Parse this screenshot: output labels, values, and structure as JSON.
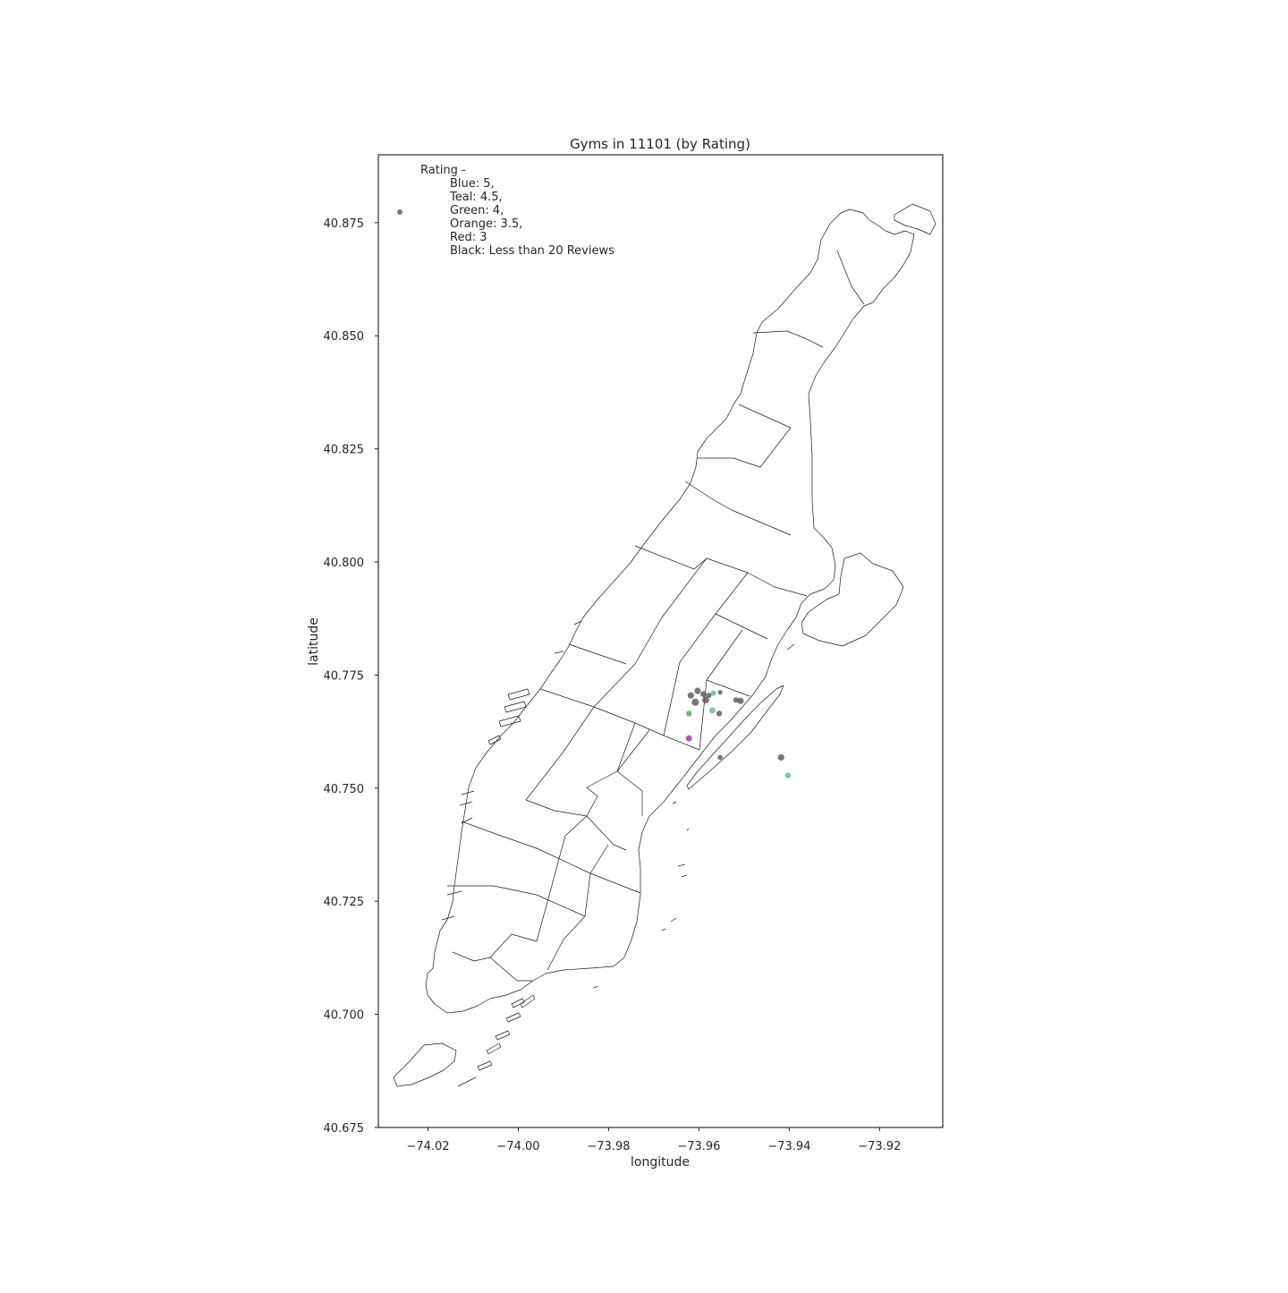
{
  "chart_data": {
    "type": "scatter",
    "title": "Gyms in 11101 (by Rating)",
    "xlabel": "longitude",
    "ylabel": "latitude",
    "xlim": [
      -74.031,
      -73.906
    ],
    "ylim": [
      40.675,
      40.89
    ],
    "x_ticks": [
      -74.02,
      -74.0,
      -73.98,
      -73.96,
      -73.94,
      -73.92
    ],
    "x_tick_labels": [
      "−74.02",
      "−74.00",
      "−73.98",
      "−73.96",
      "−73.94",
      "−73.92"
    ],
    "y_ticks": [
      40.675,
      40.7,
      40.725,
      40.75,
      40.775,
      40.8,
      40.825,
      40.85,
      40.875
    ],
    "y_tick_labels": [
      "40.675",
      "40.700",
      "40.725",
      "40.750",
      "40.775",
      "40.800",
      "40.825",
      "40.850",
      "40.875"
    ],
    "grid": false,
    "legend": {
      "placement": "top-left",
      "header": "Rating -",
      "lines": [
        "Blue: 5,",
        "Teal: 4.5,",
        "Green: 4,",
        "Orange: 3.5,",
        "Red: 3",
        "Black: Less than 20 Reviews"
      ],
      "marker_color": "#777777"
    },
    "colors": {
      "black": "#555555",
      "teal": "#5fb0b0",
      "green": "#4fa04f",
      "purple": "#9a2c9a",
      "map_outline": "#1a1a1a"
    },
    "points": [
      {
        "lon": -73.9618,
        "lat": 40.7705,
        "color": "black",
        "r": 3.6
      },
      {
        "lon": -73.9603,
        "lat": 40.7715,
        "color": "black",
        "r": 3.6
      },
      {
        "lon": -73.9608,
        "lat": 40.769,
        "color": "black",
        "r": 4.0
      },
      {
        "lon": -73.9585,
        "lat": 40.7695,
        "color": "black",
        "r": 4.0
      },
      {
        "lon": -73.959,
        "lat": 40.7708,
        "color": "black",
        "r": 3.4
      },
      {
        "lon": -73.9578,
        "lat": 40.7705,
        "color": "black",
        "r": 3.0
      },
      {
        "lon": -73.9568,
        "lat": 40.771,
        "color": "teal",
        "r": 3.0
      },
      {
        "lon": -73.9553,
        "lat": 40.7712,
        "color": "black",
        "r": 2.6
      },
      {
        "lon": -73.9518,
        "lat": 40.7695,
        "color": "black",
        "r": 3.0
      },
      {
        "lon": -73.9508,
        "lat": 40.7693,
        "color": "black",
        "r": 3.6
      },
      {
        "lon": -73.9622,
        "lat": 40.7665,
        "color": "green",
        "r": 3.2
      },
      {
        "lon": -73.957,
        "lat": 40.7672,
        "color": "teal",
        "r": 3.4
      },
      {
        "lon": -73.9555,
        "lat": 40.7665,
        "color": "black",
        "r": 3.2
      },
      {
        "lon": -73.9622,
        "lat": 40.761,
        "color": "purple",
        "r": 3.4
      },
      {
        "lon": -73.9553,
        "lat": 40.7568,
        "color": "black",
        "r": 2.8
      },
      {
        "lon": -73.9418,
        "lat": 40.7568,
        "color": "black",
        "r": 3.6
      },
      {
        "lon": -73.9403,
        "lat": 40.7528,
        "color": "teal",
        "r": 3.2
      }
    ]
  }
}
